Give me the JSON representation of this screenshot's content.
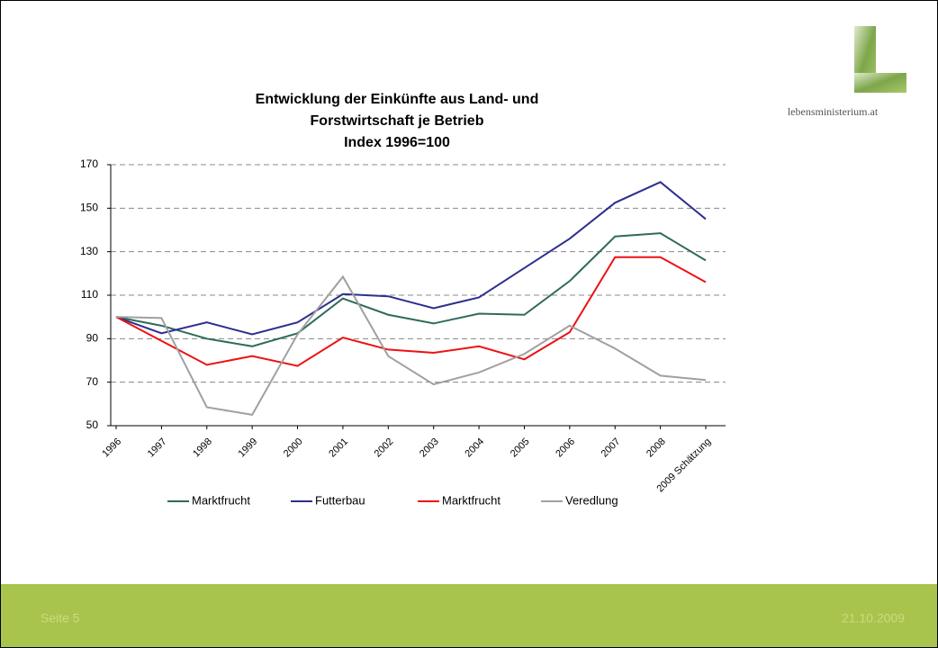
{
  "chart_data": {
    "type": "line",
    "title": [
      "Entwicklung der Einkünfte aus Land- und",
      "Forstwirtschaft je Betrieb",
      "Index 1996=100"
    ],
    "categories": [
      "1996",
      "1997",
      "1998",
      "1999",
      "2000",
      "2001",
      "2002",
      "2003",
      "2004",
      "2005",
      "2006",
      "2007",
      "2008",
      "2009 Schätzung"
    ],
    "series": [
      {
        "name": "Marktfrucht",
        "color": "#2e6b5a",
        "values": [
          100,
          96,
          90,
          86.5,
          92.5,
          108.5,
          101,
          97,
          101.5,
          101,
          116.5,
          137,
          138.5,
          126
        ]
      },
      {
        "name": "Futterbau",
        "color": "#2e2e8f",
        "values": [
          100,
          92.5,
          97.5,
          92,
          97.5,
          110.5,
          109.5,
          104,
          109,
          122.5,
          136,
          152.5,
          162,
          145
        ]
      },
      {
        "name": "Marktfrucht",
        "color": "#ee1111",
        "values": [
          100,
          89,
          78,
          82,
          77.5,
          90.5,
          85,
          83.5,
          86.5,
          80.5,
          93,
          127.5,
          127.5,
          116
        ]
      },
      {
        "name": "Veredlung",
        "color": "#a0a0a0",
        "values": [
          100,
          99.5,
          58.5,
          55,
          92,
          118.5,
          82,
          69,
          74.5,
          83,
          96,
          85.5,
          73,
          71
        ]
      }
    ],
    "ylim": [
      50,
      170
    ],
    "yticks": [
      50,
      70,
      90,
      110,
      130,
      150,
      170
    ],
    "grid": true,
    "legend": "bottom"
  },
  "logo": "lebensministerium.at",
  "footer": {
    "page": "Seite 5",
    "date": "21.10.2009"
  }
}
